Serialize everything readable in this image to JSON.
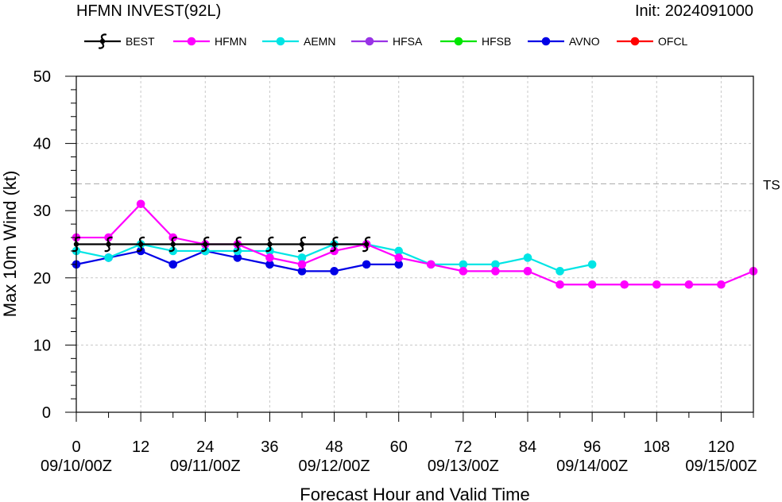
{
  "chart_data": {
    "type": "line",
    "title": "HFMN INVEST(92L)",
    "init_label": "Init: 2024091000",
    "xlabel": "Forecast Hour and Valid Time",
    "ylabel": "Max 10m Wind (kt)",
    "xlim": [
      0,
      126
    ],
    "ylim": [
      0,
      50
    ],
    "x_ticks": [
      0,
      12,
      24,
      36,
      48,
      60,
      72,
      84,
      96,
      108,
      120
    ],
    "x_tick_labels": [
      "0",
      "12",
      "24",
      "36",
      "48",
      "60",
      "72",
      "84",
      "96",
      "108",
      "120"
    ],
    "valid_time_labels": [
      {
        "x": 0,
        "label": "09/10/00Z"
      },
      {
        "x": 24,
        "label": "09/11/00Z"
      },
      {
        "x": 48,
        "label": "09/12/00Z"
      },
      {
        "x": 72,
        "label": "09/13/00Z"
      },
      {
        "x": 96,
        "label": "09/14/00Z"
      },
      {
        "x": 120,
        "label": "09/15/00Z"
      }
    ],
    "y_ticks": [
      0,
      10,
      20,
      30,
      40,
      50
    ],
    "y_tick_labels": [
      "0",
      "10",
      "20",
      "30",
      "40",
      "50"
    ],
    "grid": true,
    "reference_lines": [
      {
        "y": 34,
        "label": "TS"
      }
    ],
    "legend_position": "top",
    "series": [
      {
        "name": "BEST",
        "color": "#000000",
        "marker": "hurricane-symbol",
        "x": [
          0,
          6,
          12,
          18,
          24,
          30,
          36,
          42,
          48,
          54
        ],
        "y": [
          25,
          25,
          25,
          25,
          25,
          25,
          25,
          25,
          25,
          25
        ]
      },
      {
        "name": "HFMN",
        "color": "#ff00ff",
        "marker": "circle",
        "x": [
          0,
          6,
          12,
          18,
          24,
          30,
          36,
          42,
          48,
          54,
          60,
          66,
          72,
          78,
          84,
          90,
          96,
          102,
          108,
          114,
          120,
          126
        ],
        "y": [
          26,
          26,
          31,
          26,
          25,
          25,
          23,
          22,
          24,
          25,
          23,
          22,
          21,
          21,
          21,
          19,
          19,
          19,
          19,
          19,
          19,
          21
        ]
      },
      {
        "name": "AEMN",
        "color": "#00e5e5",
        "marker": "circle",
        "x": [
          0,
          6,
          12,
          18,
          24,
          30,
          36,
          42,
          48,
          54,
          60,
          66,
          72,
          78,
          84,
          90,
          96
        ],
        "y": [
          24,
          23,
          25,
          24,
          24,
          24,
          24,
          23,
          25,
          25,
          24,
          22,
          22,
          22,
          23,
          21,
          22
        ]
      },
      {
        "name": "HFSA",
        "color": "#9933e6",
        "marker": "circle",
        "x": [],
        "y": []
      },
      {
        "name": "HFSB",
        "color": "#00e600",
        "marker": "circle",
        "x": [],
        "y": []
      },
      {
        "name": "AVNO",
        "color": "#0000e6",
        "marker": "circle",
        "x": [
          0,
          6,
          12,
          18,
          24,
          30,
          36,
          42,
          48,
          54,
          60
        ],
        "y": [
          22,
          23,
          24,
          22,
          24,
          23,
          22,
          21,
          21,
          22,
          22
        ]
      },
      {
        "name": "OFCL",
        "color": "#ff0000",
        "marker": "circle",
        "x": [],
        "y": []
      }
    ]
  }
}
